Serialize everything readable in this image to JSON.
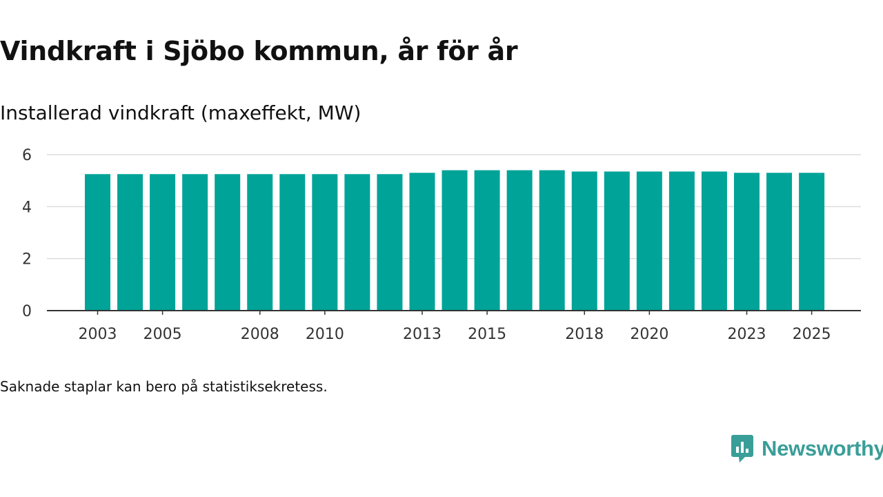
{
  "page": {
    "title": "Vindkraft i Sjöbo kommun, år för år",
    "subtitle": "Installerad vindkraft (maxeffekt, MW)",
    "footnote": "Saknade staplar kan bero på statistiksekretess.",
    "brand": {
      "name": "Newsworthy",
      "icon": "newsworthy-logo-icon",
      "color": "#3a9e98"
    }
  },
  "chart_data": {
    "type": "bar",
    "title": "Vindkraft i Sjöbo kommun, år för år",
    "subtitle": "Installerad vindkraft (maxeffekt, MW)",
    "xlabel": "",
    "ylabel": "Installerad vindkraft (maxeffekt, MW)",
    "ylim": [
      0,
      6
    ],
    "yticks": [
      0,
      2,
      4,
      6
    ],
    "grid": true,
    "bar_color": "#00a398",
    "categories": [
      "2003",
      "2004",
      "2005",
      "2006",
      "2007",
      "2008",
      "2009",
      "2010",
      "2011",
      "2012",
      "2013",
      "2014",
      "2015",
      "2016",
      "2017",
      "2018",
      "2019",
      "2020",
      "2021",
      "2022",
      "2023",
      "2024",
      "2025"
    ],
    "xtick_labels": [
      "2003",
      "2005",
      "2008",
      "2010",
      "2013",
      "2015",
      "2018",
      "2020",
      "2023",
      "2025"
    ],
    "values": [
      5.25,
      5.25,
      5.25,
      5.25,
      5.25,
      5.25,
      5.25,
      5.25,
      5.25,
      5.25,
      5.3,
      5.4,
      5.4,
      5.4,
      5.4,
      5.35,
      5.35,
      5.35,
      5.35,
      5.35,
      5.3,
      5.3,
      5.3
    ]
  }
}
